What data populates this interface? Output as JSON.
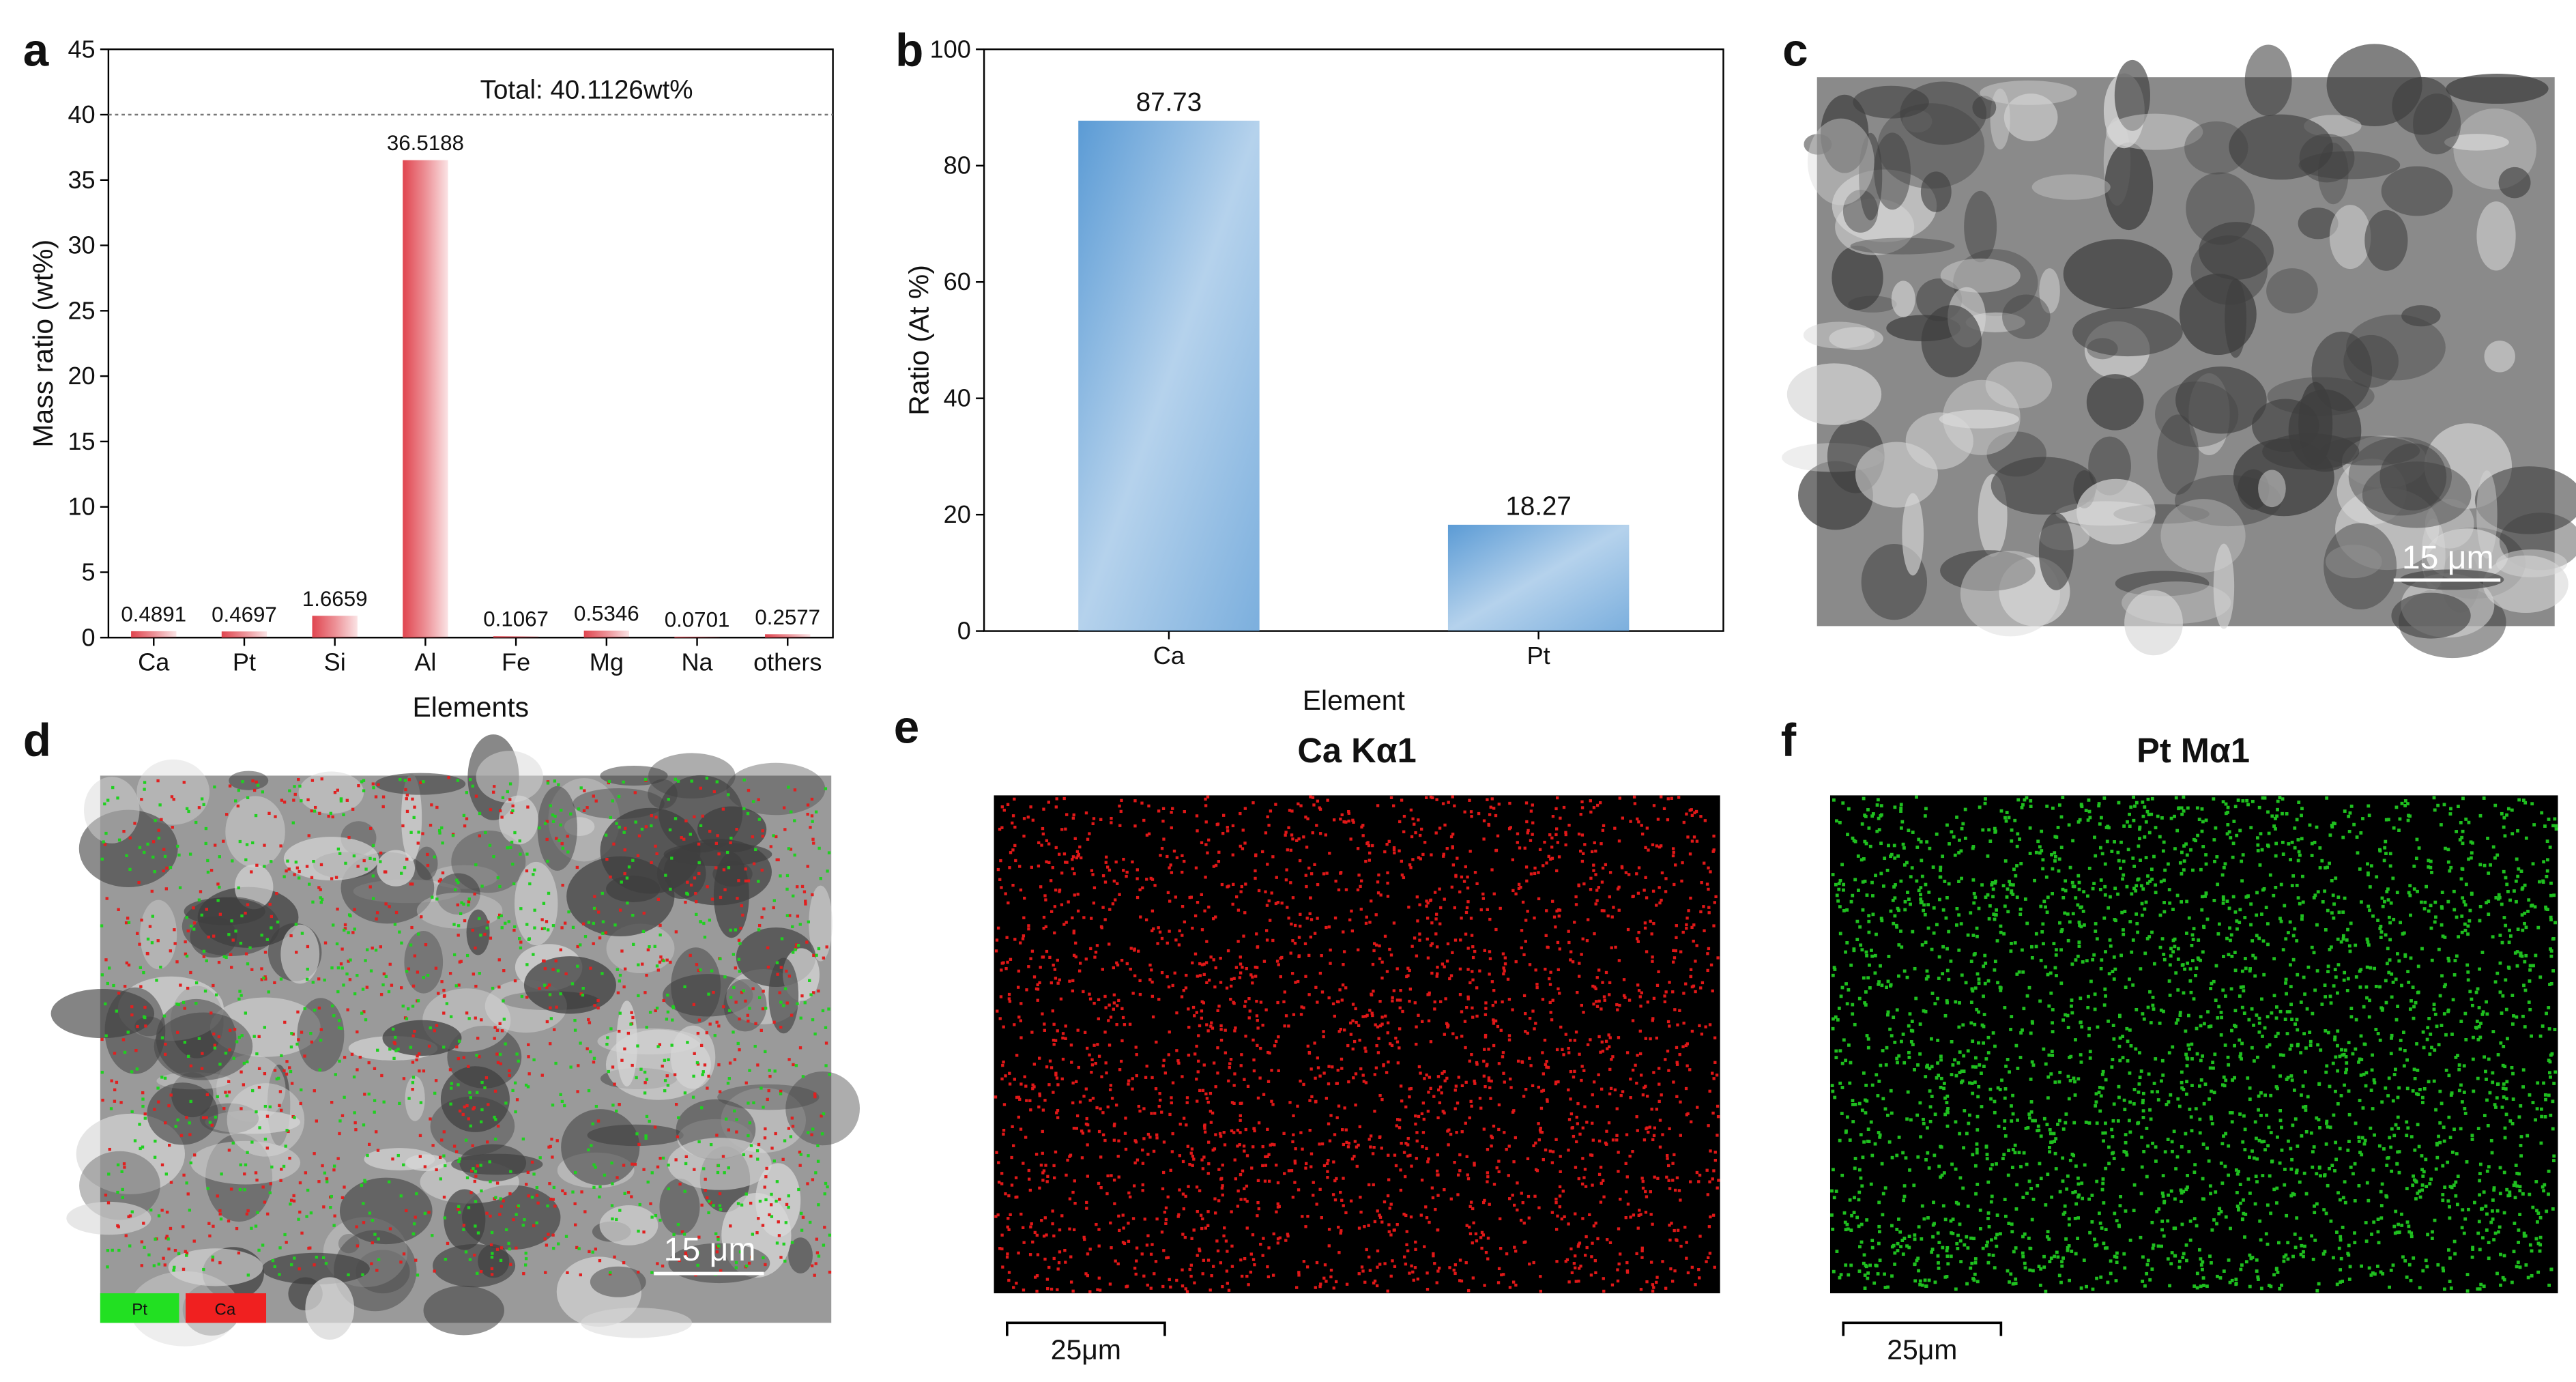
{
  "chart_data": [
    {
      "type": "bar",
      "categories": [
        "Ca",
        "Pt",
        "Si",
        "Al",
        "Fe",
        "Mg",
        "Na",
        "others"
      ],
      "values": [
        0.4891,
        0.4697,
        1.6659,
        36.5188,
        0.1067,
        0.5346,
        0.0701,
        0.2577
      ],
      "color": "#e0454f",
      "ylim": [
        0,
        45
      ],
      "yticks": [
        0,
        5,
        10,
        15,
        20,
        25,
        30,
        35,
        40,
        45
      ],
      "x_label": "Elements",
      "y_label": "Mass ratio (wt%)",
      "annotation": "Total: 40.1126wt%",
      "reference_line": 40
    },
    {
      "type": "bar",
      "categories": [
        "Ca",
        "Pt"
      ],
      "values": [
        87.73,
        18.27
      ],
      "color": "#5b9bd5",
      "ylim": [
        0,
        100
      ],
      "yticks": [
        0,
        20,
        40,
        60,
        80,
        100
      ],
      "x_label": "Element",
      "y_label": "Ratio (At %)"
    }
  ],
  "figure": {
    "panel_labels": [
      "a",
      "b",
      "c",
      "d",
      "e",
      "f"
    ],
    "scale_bars": [
      "15 μm",
      "15 μm",
      "25μm",
      "25μm"
    ],
    "map_titles": [
      "Ca Kα1",
      "Pt Mα1"
    ],
    "legend": [
      "Pt",
      "Ca"
    ]
  }
}
